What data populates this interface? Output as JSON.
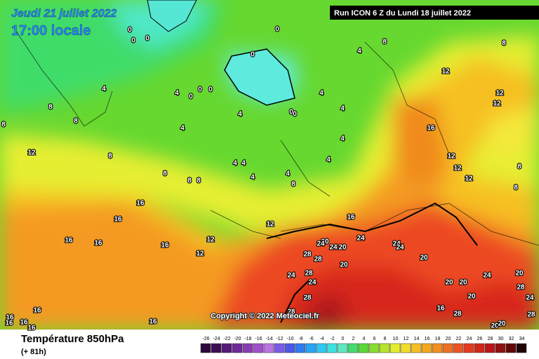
{
  "header": {
    "date": "Jeudi 21 juillet 2022",
    "time": "17:00 locale",
    "run": "Run ICON 6 Z du Lundi 18 juillet 2022"
  },
  "map": {
    "copyright": "Copyright © 2022 Meteociel.fr",
    "contour_labels": [
      0,
      0,
      0,
      0,
      0,
      0,
      0,
      0,
      0,
      0,
      4,
      4,
      4,
      4,
      4,
      4,
      4,
      4,
      4,
      4,
      4,
      4,
      4,
      8,
      8,
      8,
      8,
      8,
      8,
      8,
      8,
      8,
      8,
      8,
      8,
      12,
      12,
      12,
      12,
      12,
      12,
      12,
      12,
      12,
      12,
      16,
      16,
      16,
      16,
      16,
      16,
      16,
      16,
      16,
      16,
      16,
      16,
      16,
      16,
      20,
      20,
      20,
      20,
      20,
      20,
      20,
      20,
      20,
      20,
      24,
      24,
      24,
      24,
      24,
      24,
      24,
      24,
      24,
      28,
      28,
      28,
      28,
      28,
      28,
      28,
      28
    ]
  },
  "footer": {
    "variable": "Température 850hPa",
    "lead": "(+ 81h)",
    "scale": [
      -26,
      -24,
      -22,
      -20,
      -18,
      -16,
      -14,
      -12,
      -10,
      -8,
      -6,
      -4,
      -2,
      0,
      2,
      4,
      6,
      8,
      10,
      12,
      14,
      16,
      18,
      20,
      22,
      24,
      26,
      28,
      30,
      32,
      34
    ]
  }
}
